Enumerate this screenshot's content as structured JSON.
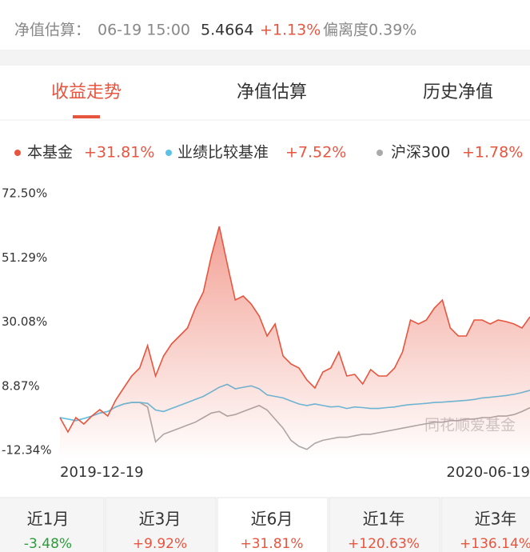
{
  "header": {
    "label": "净值估算：",
    "time": "06-19 15:00",
    "nav": "5.4664",
    "change": "+1.13%",
    "deviation": "偏离度0.39%"
  },
  "tabs": [
    "收益走势",
    "净值估算",
    "历史净值"
  ],
  "chart_data": {
    "type": "line",
    "categories": [
      "2019-12-19",
      null,
      null,
      null,
      null,
      null,
      null,
      null,
      null,
      null,
      null,
      null,
      null,
      null,
      null,
      null,
      null,
      null,
      null,
      null,
      null,
      null,
      null,
      null,
      null,
      null,
      null,
      null,
      null,
      null,
      null,
      null,
      null,
      null,
      null,
      null,
      null,
      null,
      null,
      null,
      null,
      null,
      null,
      null,
      null,
      null,
      null,
      null,
      null,
      null,
      null,
      null,
      null,
      null,
      null,
      null,
      null,
      null,
      null,
      "2020-06-19"
    ],
    "series": [
      {
        "name": "本基金",
        "legend_label": "+31.81%",
        "color": "#e8553f",
        "values": [
          -1.51,
          -6.26,
          -1.51,
          -3.62,
          -0.98,
          1.14,
          -0.98,
          4.31,
          8.27,
          12.24,
          14.88,
          22.28,
          12.24,
          18.84,
          22.81,
          25.45,
          28.09,
          34.7,
          39.99,
          51.88,
          61.66,
          49.24,
          37.34,
          38.66,
          36.02,
          32.06,
          25.45,
          29.41,
          18.84,
          16.2,
          14.88,
          10.92,
          8.27,
          13.56,
          14.88,
          20.17,
          12.24,
          12.77,
          9.59,
          14.35,
          12.24,
          12.24,
          14.88,
          20.17,
          30.74,
          29.41,
          30.74,
          34.7,
          37.34,
          28.09,
          25.45,
          25.45,
          30.74,
          30.74,
          29.41,
          30.74,
          30.21,
          29.41,
          28.09,
          31.81
        ]
      },
      {
        "name": "业绩比较基准",
        "legend_label": "+7.52%",
        "color": "#5bc2e7",
        "values": [
          -1.5,
          -2,
          -2.5,
          -1.8,
          -1,
          0,
          0.5,
          2,
          3,
          3.5,
          3.5,
          3.2,
          1,
          0.5,
          1.5,
          2.5,
          3.5,
          4.5,
          5.5,
          7,
          8.5,
          9.5,
          8,
          8.5,
          9,
          8,
          6,
          5.5,
          5,
          4,
          3,
          2.5,
          3,
          2.5,
          2,
          2.2,
          1.5,
          2,
          1.8,
          1.5,
          1.5,
          1.8,
          2,
          2.5,
          2.8,
          3,
          3.2,
          3.5,
          3.6,
          3.8,
          4,
          4.2,
          4.5,
          5,
          5.2,
          5.5,
          5.8,
          6.2,
          6.8,
          7.52
        ]
      },
      {
        "name": "沪深300",
        "legend_label": "+1.78%",
        "color": "#aaaaaa",
        "values": [
          -1.5,
          -2,
          -2.5,
          -1.8,
          -1,
          0,
          0.5,
          2,
          3,
          3.5,
          3.5,
          2,
          -9.5,
          -7,
          -6,
          -5,
          -4,
          -3,
          -1.5,
          0,
          0.5,
          -1,
          -0.5,
          0.5,
          1.5,
          2.5,
          1,
          -2,
          -5,
          -9,
          -11,
          -12,
          -10,
          -9,
          -8.5,
          -8,
          -8,
          -7.5,
          -7,
          -7,
          -6.5,
          -6,
          -5.5,
          -5,
          -4.5,
          -4,
          -3.5,
          -3,
          -3,
          -2.5,
          -2.5,
          -2,
          -2,
          -1.5,
          -1.5,
          -1,
          -1,
          -0.5,
          0.5,
          1.78
        ]
      }
    ],
    "ylim": [
      -12.34,
      72.5
    ],
    "yticks": [
      {
        "value": 72.5,
        "label": "72.50%"
      },
      {
        "value": 51.29,
        "label": "51.29%"
      },
      {
        "value": 30.08,
        "label": "30.08%"
      },
      {
        "value": 8.87,
        "label": "8.87%"
      },
      {
        "value": -12.34,
        "label": "-12.34%"
      }
    ],
    "grid": false,
    "watermark": "同花顺爱基金"
  },
  "periods": [
    {
      "name": "近1月",
      "return": "-3.48%"
    },
    {
      "name": "近3月",
      "return": "+9.92%"
    },
    {
      "name": "近6月",
      "return": "+31.81%"
    },
    {
      "name": "近1年",
      "return": "+120.63%"
    },
    {
      "name": "近3年",
      "return": "+136.14%"
    }
  ]
}
